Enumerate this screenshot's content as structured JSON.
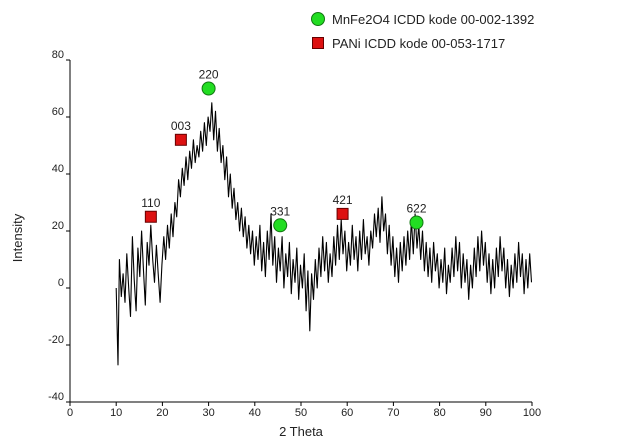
{
  "chart_data": {
    "type": "line",
    "title": "",
    "xlabel": "2 Theta",
    "ylabel": "Intensity",
    "xlim": [
      0,
      100
    ],
    "ylim": [
      -40,
      80
    ],
    "x_ticks": [
      0,
      10,
      20,
      30,
      40,
      50,
      60,
      70,
      80,
      90,
      100
    ],
    "y_ticks": [
      -40,
      -20,
      0,
      20,
      40,
      60,
      80
    ],
    "grid": false,
    "legend_position": "top-right",
    "colors": {
      "line": "#000000",
      "MnFe2O4": "#22dd22",
      "PANi": "#dd1111"
    },
    "legend": [
      {
        "label": "MnFe2O4 ICDD kode 00-002-1392",
        "marker": "circle",
        "color": "#22dd22"
      },
      {
        "label": "PANi ICDD kode 00-053-1717",
        "marker": "square",
        "color": "#dd1111"
      }
    ],
    "series": [
      {
        "points": [
          [
            10,
            0
          ],
          [
            10.4,
            -27
          ],
          [
            10.7,
            10
          ],
          [
            11.1,
            -3
          ],
          [
            11.5,
            5
          ],
          [
            11.9,
            -5
          ],
          [
            12.3,
            12
          ],
          [
            12.7,
            0
          ],
          [
            13.1,
            -10
          ],
          [
            13.5,
            18
          ],
          [
            13.9,
            3
          ],
          [
            14.3,
            -8
          ],
          [
            14.7,
            14
          ],
          [
            15.1,
            4
          ],
          [
            15.5,
            20
          ],
          [
            15.9,
            6
          ],
          [
            16.3,
            -6
          ],
          [
            16.7,
            16
          ],
          [
            17.1,
            8
          ],
          [
            17.5,
            22
          ],
          [
            17.9,
            10
          ],
          [
            18.3,
            2
          ],
          [
            18.7,
            15
          ],
          [
            19.1,
            5
          ],
          [
            19.5,
            -5
          ],
          [
            19.9,
            8
          ],
          [
            20.3,
            18
          ],
          [
            20.7,
            10
          ],
          [
            21.1,
            22
          ],
          [
            21.5,
            14
          ],
          [
            21.9,
            26
          ],
          [
            22.3,
            18
          ],
          [
            22.7,
            30
          ],
          [
            23.1,
            25
          ],
          [
            23.5,
            38
          ],
          [
            23.9,
            32
          ],
          [
            24.3,
            42
          ],
          [
            24.7,
            36
          ],
          [
            25.1,
            46
          ],
          [
            25.5,
            38
          ],
          [
            25.9,
            48
          ],
          [
            26.3,
            42
          ],
          [
            26.7,
            52
          ],
          [
            27.1,
            44
          ],
          [
            27.5,
            50
          ],
          [
            27.9,
            46
          ],
          [
            28.3,
            55
          ],
          [
            28.7,
            48
          ],
          [
            29.1,
            58
          ],
          [
            29.5,
            50
          ],
          [
            29.9,
            60
          ],
          [
            30.3,
            55
          ],
          [
            30.7,
            65
          ],
          [
            31.1,
            52
          ],
          [
            31.5,
            62
          ],
          [
            31.9,
            48
          ],
          [
            32.3,
            56
          ],
          [
            32.7,
            44
          ],
          [
            33.1,
            50
          ],
          [
            33.5,
            38
          ],
          [
            33.9,
            46
          ],
          [
            34.3,
            32
          ],
          [
            34.7,
            40
          ],
          [
            35.1,
            28
          ],
          [
            35.5,
            35
          ],
          [
            35.9,
            24
          ],
          [
            36.3,
            30
          ],
          [
            36.7,
            20
          ],
          [
            37.1,
            28
          ],
          [
            37.5,
            18
          ],
          [
            37.9,
            25
          ],
          [
            38.3,
            14
          ],
          [
            38.7,
            22
          ],
          [
            39.1,
            12
          ],
          [
            39.5,
            20
          ],
          [
            39.9,
            8
          ],
          [
            40.3,
            18
          ],
          [
            40.7,
            10
          ],
          [
            41.1,
            22
          ],
          [
            41.5,
            6
          ],
          [
            41.9,
            16
          ],
          [
            42.3,
            4
          ],
          [
            42.7,
            20
          ],
          [
            43.1,
            10
          ],
          [
            43.5,
            26
          ],
          [
            43.9,
            8
          ],
          [
            44.3,
            18
          ],
          [
            44.7,
            2
          ],
          [
            45.1,
            14
          ],
          [
            45.5,
            6
          ],
          [
            45.9,
            18
          ],
          [
            46.3,
            0
          ],
          [
            46.7,
            12
          ],
          [
            47.1,
            4
          ],
          [
            47.5,
            16
          ],
          [
            47.9,
            -2
          ],
          [
            48.3,
            10
          ],
          [
            48.7,
            2
          ],
          [
            49.1,
            14
          ],
          [
            49.5,
            -4
          ],
          [
            49.9,
            8
          ],
          [
            50.3,
            0
          ],
          [
            50.7,
            12
          ],
          [
            51.1,
            -8
          ],
          [
            51.5,
            6
          ],
          [
            51.9,
            -15
          ],
          [
            52.3,
            5
          ],
          [
            52.7,
            -4
          ],
          [
            53.1,
            10
          ],
          [
            53.5,
            0
          ],
          [
            53.9,
            14
          ],
          [
            54.3,
            4
          ],
          [
            54.7,
            18
          ],
          [
            55.1,
            6
          ],
          [
            55.5,
            16
          ],
          [
            55.9,
            2
          ],
          [
            56.3,
            12
          ],
          [
            56.7,
            4
          ],
          [
            57.1,
            18
          ],
          [
            57.5,
            8
          ],
          [
            57.9,
            22
          ],
          [
            58.3,
            10
          ],
          [
            58.7,
            24
          ],
          [
            59.1,
            12
          ],
          [
            59.5,
            20
          ],
          [
            59.9,
            6
          ],
          [
            60.3,
            16
          ],
          [
            60.7,
            8
          ],
          [
            61.1,
            22
          ],
          [
            61.5,
            10
          ],
          [
            61.9,
            18
          ],
          [
            62.3,
            6
          ],
          [
            62.7,
            20
          ],
          [
            63.1,
            10
          ],
          [
            63.5,
            24
          ],
          [
            63.9,
            12
          ],
          [
            64.3,
            18
          ],
          [
            64.7,
            8
          ],
          [
            65.1,
            20
          ],
          [
            65.5,
            14
          ],
          [
            65.9,
            26
          ],
          [
            66.3,
            18
          ],
          [
            66.7,
            28
          ],
          [
            67.1,
            16
          ],
          [
            67.5,
            32
          ],
          [
            67.9,
            20
          ],
          [
            68.3,
            26
          ],
          [
            68.7,
            12
          ],
          [
            69.1,
            22
          ],
          [
            69.5,
            8
          ],
          [
            69.9,
            18
          ],
          [
            70.3,
            4
          ],
          [
            70.7,
            14
          ],
          [
            71.1,
            2
          ],
          [
            71.5,
            16
          ],
          [
            71.9,
            6
          ],
          [
            72.3,
            18
          ],
          [
            72.7,
            8
          ],
          [
            73.1,
            20
          ],
          [
            73.5,
            10
          ],
          [
            73.9,
            24
          ],
          [
            74.3,
            12
          ],
          [
            74.7,
            26
          ],
          [
            75.1,
            14
          ],
          [
            75.5,
            22
          ],
          [
            75.9,
            10
          ],
          [
            76.3,
            20
          ],
          [
            76.7,
            6
          ],
          [
            77.1,
            16
          ],
          [
            77.5,
            4
          ],
          [
            77.9,
            14
          ],
          [
            78.3,
            2
          ],
          [
            78.7,
            16
          ],
          [
            79.1,
            6
          ],
          [
            79.5,
            12
          ],
          [
            79.9,
            0
          ],
          [
            80.3,
            10
          ],
          [
            80.7,
            2
          ],
          [
            81.1,
            14
          ],
          [
            81.5,
            -2
          ],
          [
            81.9,
            8
          ],
          [
            82.3,
            2
          ],
          [
            82.7,
            14
          ],
          [
            83.1,
            4
          ],
          [
            83.5,
            18
          ],
          [
            83.9,
            6
          ],
          [
            84.3,
            16
          ],
          [
            84.7,
            0
          ],
          [
            85.1,
            12
          ],
          [
            85.5,
            2
          ],
          [
            85.9,
            10
          ],
          [
            86.3,
            -4
          ],
          [
            86.7,
            8
          ],
          [
            87.1,
            0
          ],
          [
            87.5,
            14
          ],
          [
            87.9,
            4
          ],
          [
            88.3,
            18
          ],
          [
            88.7,
            6
          ],
          [
            89.1,
            20
          ],
          [
            89.5,
            8
          ],
          [
            89.9,
            16
          ],
          [
            90.3,
            2
          ],
          [
            90.7,
            12
          ],
          [
            91.1,
            -2
          ],
          [
            91.5,
            10
          ],
          [
            91.9,
            0
          ],
          [
            92.3,
            14
          ],
          [
            92.7,
            4
          ],
          [
            93.1,
            18
          ],
          [
            93.5,
            6
          ],
          [
            93.9,
            14
          ],
          [
            94.3,
            0
          ],
          [
            94.7,
            10
          ],
          [
            95.1,
            -3
          ],
          [
            95.5,
            8
          ],
          [
            95.9,
            0
          ],
          [
            96.3,
            12
          ],
          [
            96.7,
            2
          ],
          [
            97.1,
            16
          ],
          [
            97.5,
            4
          ],
          [
            97.9,
            12
          ],
          [
            98.3,
            -2
          ],
          [
            98.7,
            10
          ],
          [
            99.1,
            0
          ],
          [
            99.5,
            12
          ],
          [
            99.9,
            2
          ]
        ]
      }
    ],
    "annotations": [
      {
        "label": "110",
        "x": 17.5,
        "y": 25,
        "marker": "square",
        "color": "#dd1111"
      },
      {
        "label": "003",
        "x": 24,
        "y": 52,
        "marker": "square",
        "color": "#dd1111"
      },
      {
        "label": "220",
        "x": 30,
        "y": 70,
        "marker": "circle",
        "color": "#22dd22"
      },
      {
        "label": "331",
        "x": 45.5,
        "y": 22,
        "marker": "circle",
        "color": "#22dd22"
      },
      {
        "label": "421",
        "x": 59,
        "y": 26,
        "marker": "square",
        "color": "#dd1111"
      },
      {
        "label": "622",
        "x": 75,
        "y": 23,
        "marker": "circle",
        "color": "#22dd22"
      }
    ]
  }
}
